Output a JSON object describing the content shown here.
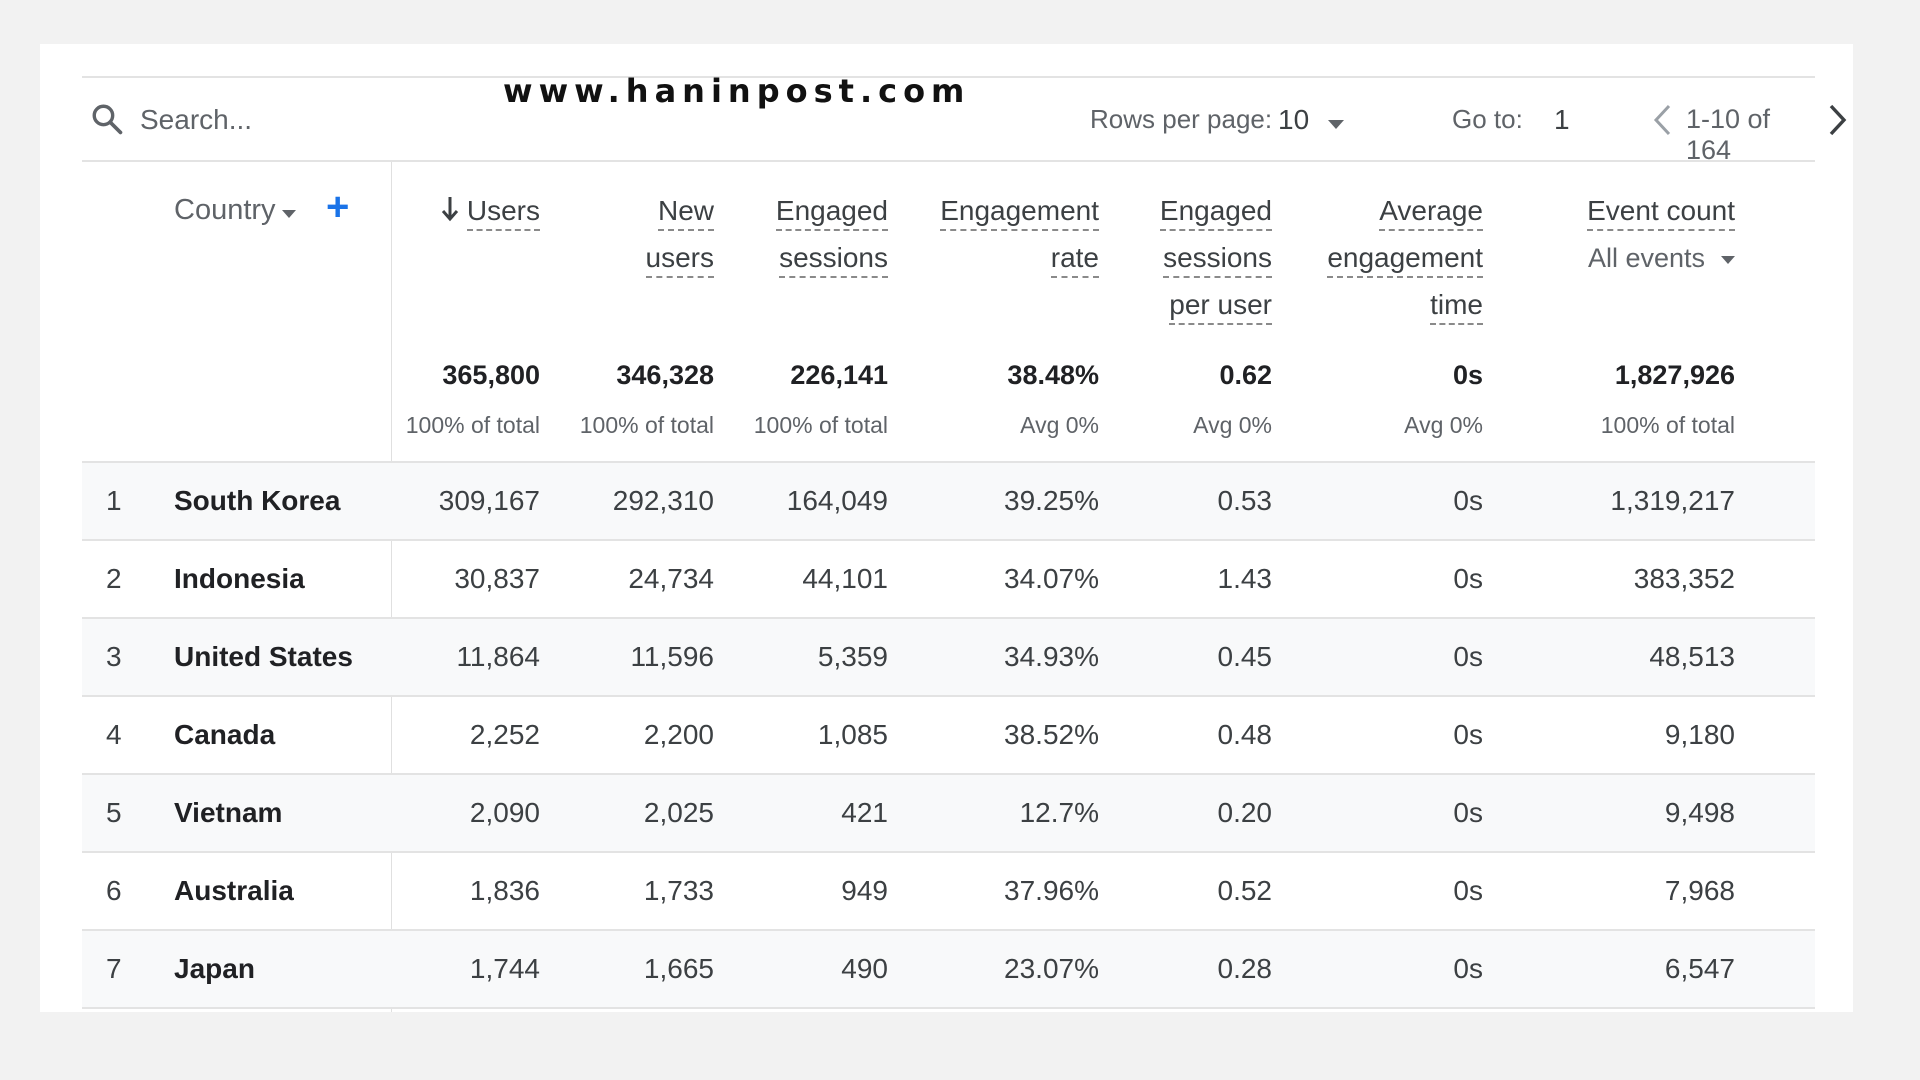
{
  "watermark": "www.haninpost.com",
  "toolbar": {
    "search_placeholder": "Search...",
    "rows_per_page_label": "Rows per page:",
    "rows_per_page_value": "10",
    "goto_label": "Go to:",
    "goto_value": "1",
    "range_text": "1-10 of 164"
  },
  "dimension": {
    "label": "Country"
  },
  "columns": [
    {
      "lines": [
        "Users"
      ],
      "sorted": true
    },
    {
      "lines": [
        "New",
        "users"
      ]
    },
    {
      "lines": [
        "Engaged",
        "sessions"
      ]
    },
    {
      "lines": [
        "Engagement",
        "rate"
      ]
    },
    {
      "lines": [
        "Engaged",
        "sessions",
        "per user"
      ]
    },
    {
      "lines": [
        "Average",
        "engagement",
        "time"
      ]
    },
    {
      "lines": [
        "Event count"
      ],
      "selector": "All events"
    }
  ],
  "totals": [
    {
      "value": "365,800",
      "sub": "100% of total"
    },
    {
      "value": "346,328",
      "sub": "100% of total"
    },
    {
      "value": "226,141",
      "sub": "100% of total"
    },
    {
      "value": "38.48%",
      "sub": "Avg 0%"
    },
    {
      "value": "0.62",
      "sub": "Avg 0%"
    },
    {
      "value": "0s",
      "sub": "Avg 0%"
    },
    {
      "value": "1,827,926",
      "sub": "100% of total"
    }
  ],
  "rows": [
    {
      "index": "1",
      "country": "South Korea",
      "values": [
        "309,167",
        "292,310",
        "164,049",
        "39.25%",
        "0.53",
        "0s",
        "1,319,217"
      ]
    },
    {
      "index": "2",
      "country": "Indonesia",
      "values": [
        "30,837",
        "24,734",
        "44,101",
        "34.07%",
        "1.43",
        "0s",
        "383,352"
      ]
    },
    {
      "index": "3",
      "country": "United States",
      "values": [
        "11,864",
        "11,596",
        "5,359",
        "34.93%",
        "0.45",
        "0s",
        "48,513"
      ]
    },
    {
      "index": "4",
      "country": "Canada",
      "values": [
        "2,252",
        "2,200",
        "1,085",
        "38.52%",
        "0.48",
        "0s",
        "9,180"
      ]
    },
    {
      "index": "5",
      "country": "Vietnam",
      "values": [
        "2,090",
        "2,025",
        "421",
        "12.7%",
        "0.20",
        "0s",
        "9,498"
      ]
    },
    {
      "index": "6",
      "country": "Australia",
      "values": [
        "1,836",
        "1,733",
        "949",
        "37.96%",
        "0.52",
        "0s",
        "7,968"
      ]
    },
    {
      "index": "7",
      "country": "Japan",
      "values": [
        "1,744",
        "1,665",
        "490",
        "23.07%",
        "0.28",
        "0s",
        "6,547"
      ]
    }
  ]
}
